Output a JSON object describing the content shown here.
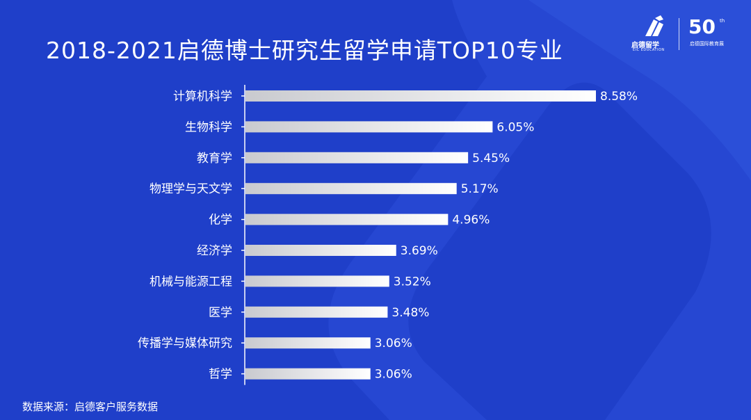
{
  "brand": {
    "logo_text": "启德留学",
    "logo_subtext": "EIC EDUCATION",
    "anniversary_number": "50",
    "anniversary_suffix": "th",
    "anniversary_text": "启德国际教育展"
  },
  "colors": {
    "background": "#1f3fc9",
    "bar_start": "#c9cacf",
    "bar_end": "#ffffff",
    "axis": "#ffffff",
    "text": "#ffffff"
  },
  "source_text": "数据来源：启德客户服务数据",
  "chart_data": {
    "type": "bar",
    "orientation": "horizontal",
    "title": "2018-2021启德博士研究生留学申请TOP10专业",
    "categories": [
      "计算机科学",
      "生物科学",
      "教育学",
      "物理学与天文学",
      "化学",
      "经济学",
      "机械与能源工程",
      "医学",
      "传播学与媒体研究",
      "哲学"
    ],
    "values": [
      8.58,
      6.05,
      5.45,
      5.17,
      4.96,
      3.69,
      3.52,
      3.48,
      3.06,
      3.06
    ],
    "value_labels": [
      "8.58%",
      "6.05%",
      "5.45%",
      "5.17%",
      "4.96%",
      "3.69%",
      "3.52%",
      "3.48%",
      "3.06%",
      "3.06%"
    ],
    "unit": "%",
    "xlim": [
      0,
      8.58
    ],
    "grid": false,
    "legend": "none"
  }
}
